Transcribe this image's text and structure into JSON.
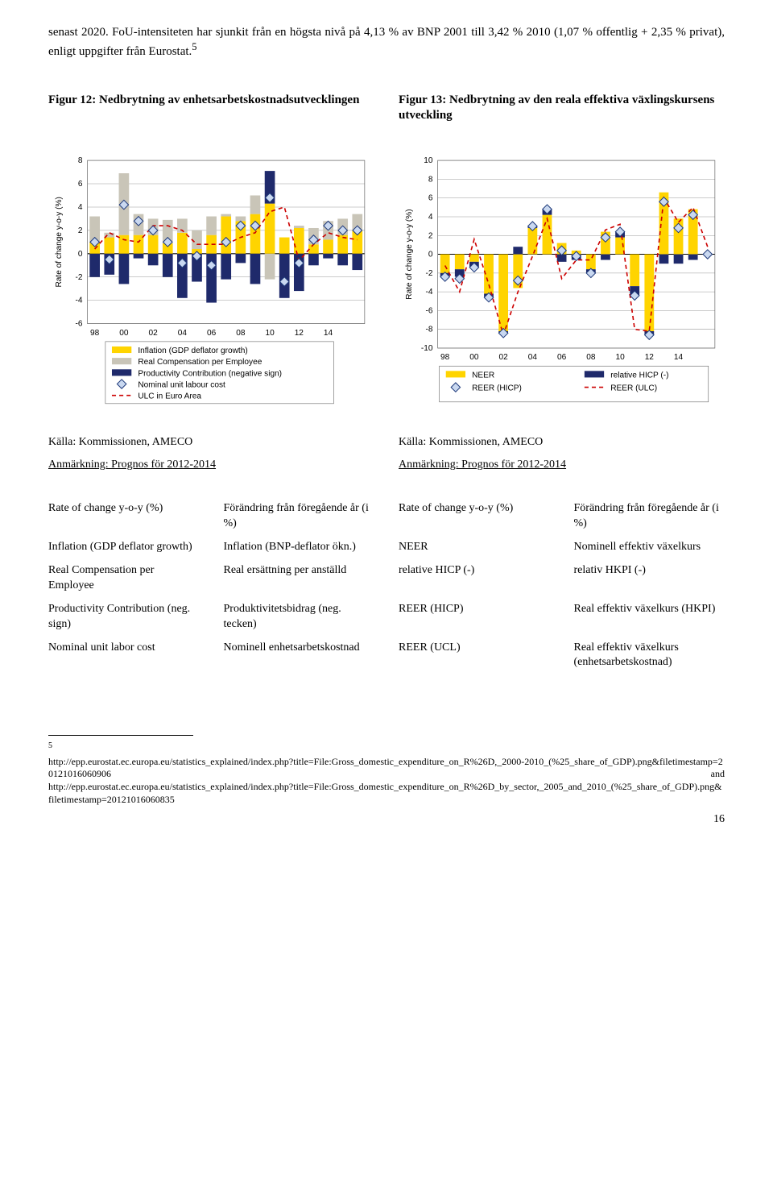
{
  "intro": "senast 2020. FoU-intensiteten har sjunkit från en högsta nivå på 4,13 % av BNP 2001 till 3,42 % 2010 (1,07 % offentlig + 2,35 % privat), enligt uppgifter från Eurostat.",
  "intro_sup": "5",
  "fig12": {
    "title": "Figur 12: Nedbrytning av enhetsarbetskostnadsutvecklingen",
    "type": "stacked-bar-line",
    "years": [
      "98",
      "00",
      "02",
      "04",
      "06",
      "08",
      "10",
      "12",
      "14"
    ],
    "ylabel": "Rate of change y-o-y (%)",
    "ylim": [
      -6,
      8
    ],
    "ytick_step": 2,
    "background_color": "#ffffff",
    "grid_color": "#999999",
    "colors": {
      "inflation": "#ffd400",
      "real_comp": "#c9c5b8",
      "productivity": "#1f2a6b",
      "nominal_marker_fill": "#c9d8f0",
      "nominal_marker_stroke": "#1f3a7a",
      "ulc_line": "#cc0000"
    },
    "legend": [
      "Inflation (GDP deflator growth)",
      "Real Compensation per Employee",
      "Productivity Contribution (negative sign)",
      "Nominal unit labour cost",
      "ULC in Euro Area"
    ],
    "series": {
      "inflation": [
        1.0,
        1.4,
        1.6,
        1.6,
        1.6,
        0.9,
        1.8,
        0.4,
        1.6,
        3.2,
        2.8,
        3.4,
        4.3,
        1.4,
        2.2,
        0.8,
        1.2,
        1.6,
        2.0
      ],
      "real_comp": [
        2.2,
        0.4,
        5.3,
        1.8,
        1.4,
        2.0,
        1.2,
        1.6,
        1.6,
        0.2,
        0.4,
        1.6,
        -2.2,
        0.0,
        0.2,
        1.4,
        1.6,
        1.4,
        1.4
      ],
      "productivity": [
        -2.0,
        -1.8,
        -2.6,
        -0.4,
        -1.0,
        -2.0,
        -3.8,
        -2.4,
        -4.2,
        -2.2,
        -0.8,
        -2.6,
        2.8,
        -3.8,
        -3.2,
        -1.0,
        -0.4,
        -1.0,
        -1.4
      ],
      "nominal_ulc": [
        1.0,
        -0.5,
        4.2,
        2.8,
        2.0,
        1.0,
        -0.8,
        -0.2,
        -1.0,
        1.0,
        2.4,
        2.4,
        4.8,
        -2.4,
        -0.8,
        1.2,
        2.4,
        2.0,
        2.0
      ],
      "ulc_euro": [
        0.4,
        1.8,
        1.2,
        1.0,
        2.4,
        2.4,
        2.0,
        0.8,
        0.8,
        0.8,
        1.4,
        1.8,
        3.6,
        4.0,
        -0.6,
        0.8,
        1.8,
        1.4,
        1.2
      ]
    },
    "source": "Källa: Kommissionen, AMECO",
    "note": "Anmärkning: Prognos för 2012-2014"
  },
  "fig13": {
    "title": "Figur 13: Nedbrytning av den reala effektiva växlingskursens utveckling",
    "type": "bar-line",
    "years": [
      "98",
      "00",
      "02",
      "04",
      "06",
      "08",
      "10",
      "12",
      "14"
    ],
    "ylabel": "Rate of change y-o-y (%)",
    "ylim": [
      -10,
      10
    ],
    "ytick_step": 2,
    "background_color": "#ffffff",
    "grid_color": "#999999",
    "colors": {
      "neer": "#ffd400",
      "relhicp": "#1f2a6b",
      "reer_marker_fill": "#c9d8f0",
      "reer_marker_stroke": "#1f3a7a",
      "reer_ulc_line": "#cc0000"
    },
    "legend": [
      "NEER",
      "relative HICP (-)",
      "REER (HICP)",
      "REER (ULC)"
    ],
    "series": {
      "neer": [
        -2.0,
        -1.6,
        -0.8,
        -4.2,
        -8.2,
        -3.6,
        2.8,
        4.2,
        1.2,
        0.4,
        -1.6,
        2.4,
        1.8,
        -3.4,
        -8.2,
        6.6,
        3.8,
        4.8,
        0.0
      ],
      "relhicp": [
        -0.4,
        -0.8,
        -0.6,
        -0.4,
        -0.2,
        0.8,
        0.2,
        0.6,
        -0.8,
        -0.6,
        -0.4,
        -0.6,
        0.6,
        -1.0,
        -0.4,
        -1.0,
        -1.0,
        -0.6,
        0.0
      ],
      "reer_hicp": [
        -2.4,
        -2.6,
        -1.4,
        -4.6,
        -8.4,
        -2.8,
        3.0,
        4.8,
        0.4,
        -0.2,
        -2.0,
        1.8,
        2.4,
        -4.4,
        -8.6,
        5.6,
        2.8,
        4.2,
        0.0
      ],
      "reer_ulc": [
        -1.2,
        -4.0,
        1.6,
        -3.2,
        -8.6,
        -4.0,
        -0.2,
        3.8,
        -2.6,
        -0.6,
        -0.6,
        2.6,
        3.2,
        -8.0,
        -8.2,
        6.0,
        3.4,
        5.0,
        0.8
      ]
    },
    "source": "Källa: Kommissionen, AMECO",
    "note": "Anmärkning: Prognos för 2012-2014"
  },
  "glossary": {
    "left": [
      [
        "Rate of change y-o-y (%)",
        "Förändring från föregående år (i %)"
      ],
      [
        "Inflation (GDP deflator growth)",
        "Inflation (BNP-deflator ökn.)"
      ],
      [
        "Real Compensation per Employee",
        "Real ersättning per anställd"
      ],
      [
        "Productivity Contribution (neg. sign)",
        "Produktivitetsbidrag (neg. tecken)"
      ],
      [
        "Nominal unit labor cost",
        "Nominell enhetsarbetskostnad"
      ]
    ],
    "right": [
      [
        "Rate of change y-o-y (%)",
        "Förändring från föregående år (i %)"
      ],
      [
        "NEER",
        "Nominell effektiv växelkurs"
      ],
      [
        "relative HICP (-)",
        "relativ HKPI (-)"
      ],
      [
        "REER (HICP)",
        "Real effektiv växelkurs (HKPI)"
      ],
      [
        "REER (UCL)",
        "Real effektiv växelkurs (enhetsarbetskostnad)"
      ]
    ]
  },
  "footnote": {
    "num": "5",
    "lines": [
      "http://epp.eurostat.ec.europa.eu/statistics_explained/index.php?title=File:Gross_domestic_expenditure_on_R%26D,_2000-2010_(%25_share_of_GDP).png&filetimestamp=20121016060906",
      "and",
      "http://epp.eurostat.ec.europa.eu/statistics_explained/index.php?title=File:Gross_domestic_expenditure_on_R%26D_by_sector,_2005_and_2010_(%25_share_of_GDP).png&filetimestamp=20121016060835"
    ]
  },
  "page_number": "16"
}
